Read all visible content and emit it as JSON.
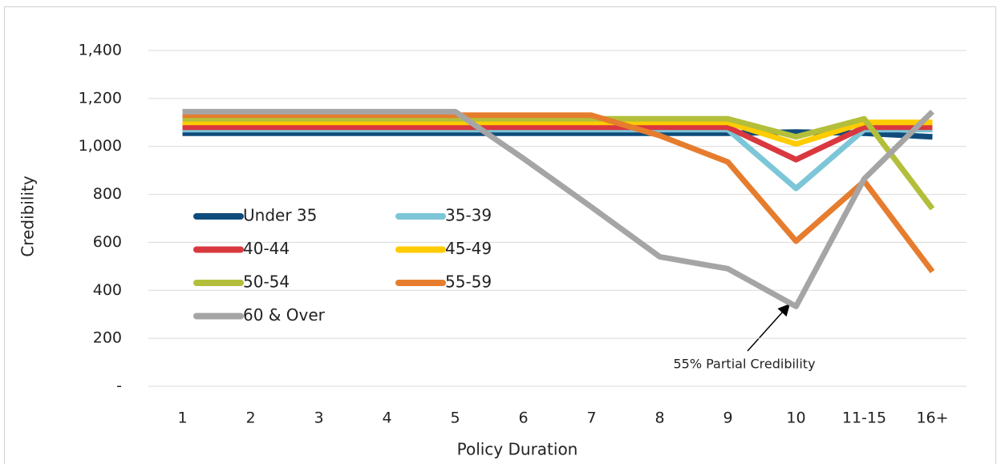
{
  "chart_data": {
    "type": "line",
    "x_label": "Policy Duration",
    "y_label": "Credibility",
    "categories": [
      "1",
      "2",
      "3",
      "4",
      "5",
      "6",
      "7",
      "8",
      "9",
      "10",
      "11-15",
      "16+"
    ],
    "series": [
      {
        "name": "Under 35",
        "color": "#0f4c7c",
        "values": [
          1055,
          1055,
          1055,
          1055,
          1055,
          1055,
          1055,
          1055,
          1055,
          1060,
          1055,
          1040
        ]
      },
      {
        "name": "35-39",
        "color": "#7cc6d8",
        "values": [
          1070,
          1070,
          1070,
          1070,
          1070,
          1070,
          1070,
          1070,
          1070,
          825,
          1070,
          1070
        ]
      },
      {
        "name": "40-44",
        "color": "#d9383f",
        "values": [
          1080,
          1080,
          1080,
          1080,
          1080,
          1080,
          1080,
          1080,
          1080,
          945,
          1080,
          1080
        ]
      },
      {
        "name": "45-49",
        "color": "#ffcc00",
        "values": [
          1100,
          1100,
          1100,
          1100,
          1100,
          1100,
          1100,
          1100,
          1100,
          1010,
          1100,
          1100
        ]
      },
      {
        "name": "50-54",
        "color": "#b3bf3a",
        "values": [
          1115,
          1115,
          1115,
          1115,
          1115,
          1115,
          1115,
          1115,
          1115,
          1040,
          1115,
          740
        ]
      },
      {
        "name": "55-59",
        "color": "#e67d2e",
        "values": [
          1130,
          1130,
          1130,
          1130,
          1130,
          1130,
          1130,
          1045,
          935,
          605,
          855,
          478
        ]
      },
      {
        "name": "60 & Over",
        "color": "#a5a5a5",
        "values": [
          1145,
          1145,
          1145,
          1145,
          1145,
          950,
          747,
          540,
          490,
          333,
          865,
          1145
        ]
      }
    ],
    "ylim": [
      0,
      1400
    ],
    "yticks": [
      {
        "value": 0,
        "label": "-"
      },
      200,
      400,
      600,
      800,
      {
        "value": 1000,
        "label": "1,000"
      },
      {
        "value": 1200,
        "label": "1,200"
      },
      {
        "value": 1400,
        "label": "1,400"
      }
    ],
    "grid": true,
    "annotation": "55% Partial Credibility"
  }
}
